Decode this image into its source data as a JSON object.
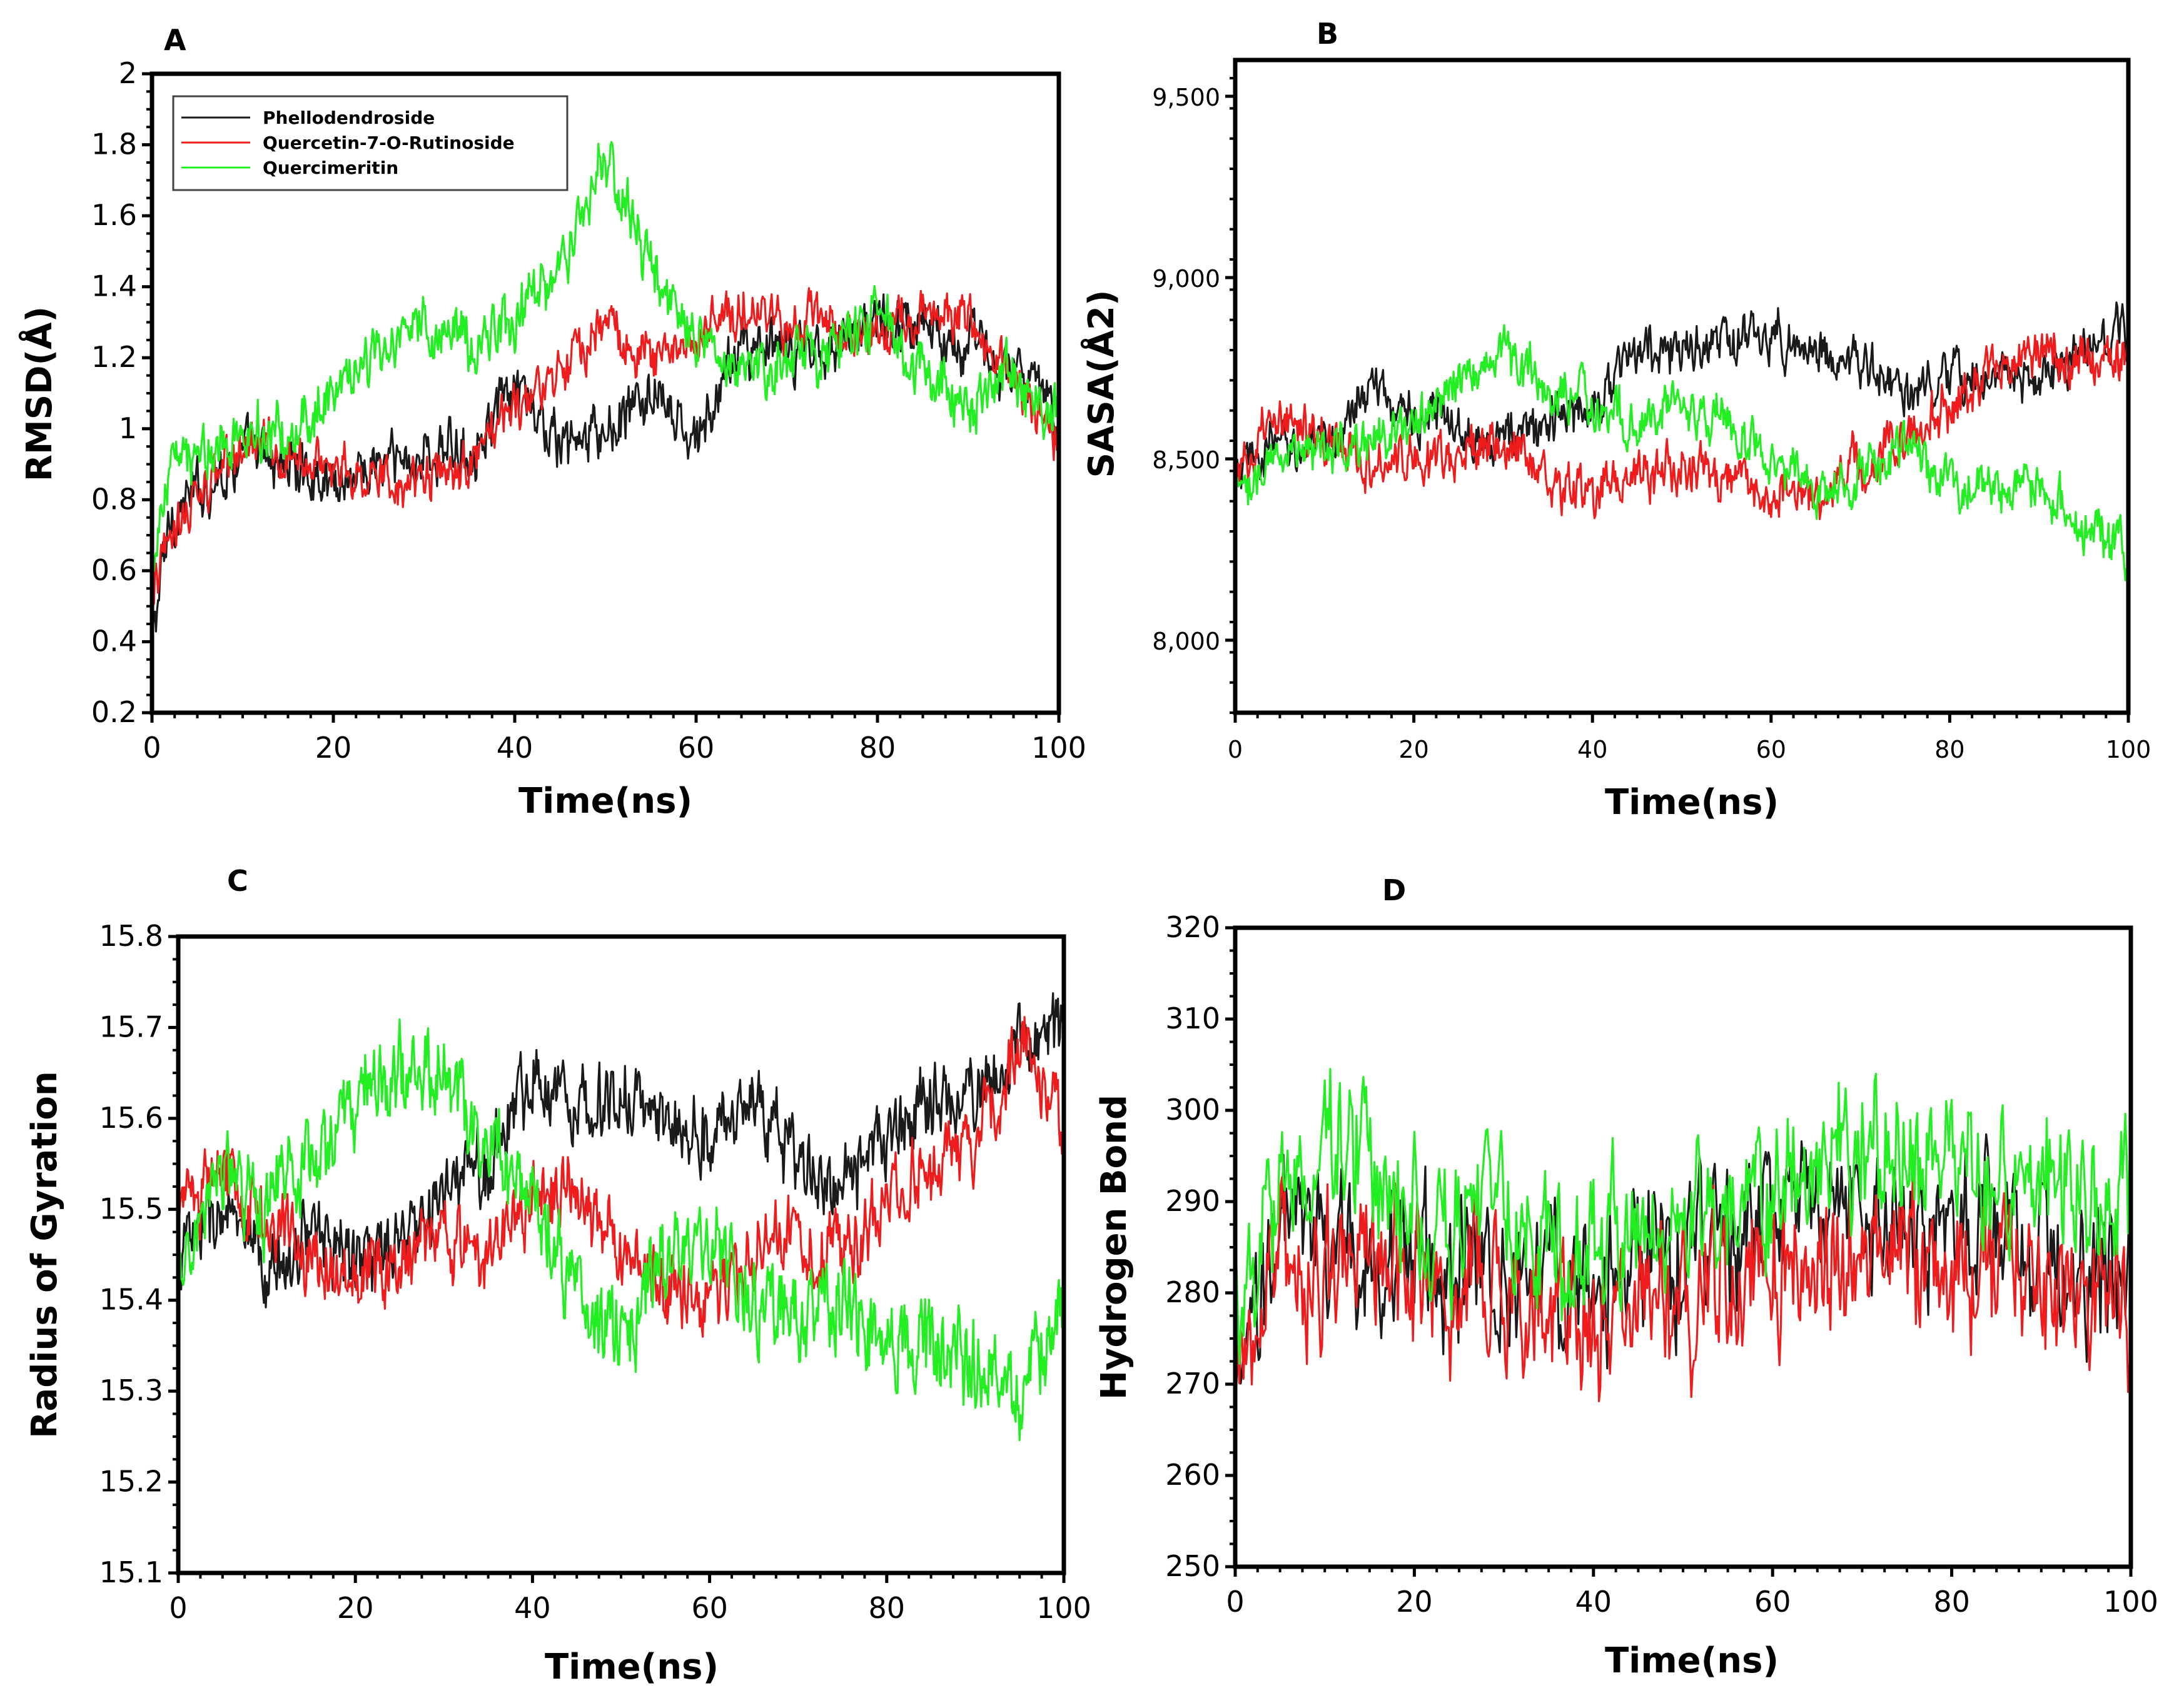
{
  "colors": {
    "Phellodendroside": "#1a1a1a",
    "Quercetin-7-O-Rutinoside": "#ee1c1c",
    "Quercimeritin": "#22ee22"
  },
  "legend": [
    "Phellodendroside",
    "Quercetin-7-O-Rutinoside",
    "Quercimeritin"
  ],
  "chart_data": [
    {
      "id": "A",
      "type": "line",
      "panel_label": "A",
      "xlabel": "Time(ns)",
      "ylabel": "RMSD(Å)",
      "xlim": [
        0,
        100
      ],
      "ylim": [
        0.2,
        2.0
      ],
      "xticks": [
        "0",
        "20",
        "40",
        "60",
        "80",
        "100"
      ],
      "yticks": [
        "0.2",
        "0.4",
        "0.6",
        "0.8",
        "1",
        "1.2",
        "1.4",
        "1.6",
        "1.8",
        "2"
      ],
      "x": [
        0,
        2,
        5,
        10,
        15,
        20,
        25,
        30,
        35,
        40,
        45,
        50,
        55,
        60,
        65,
        70,
        75,
        80,
        85,
        90,
        95,
        100
      ],
      "series": [
        {
          "name": "Phellodendroside",
          "values": [
            0.4,
            0.75,
            0.82,
            0.93,
            0.9,
            0.85,
            0.9,
            0.92,
            0.95,
            1.1,
            0.95,
            0.98,
            1.1,
            0.95,
            1.25,
            1.2,
            1.25,
            1.3,
            1.3,
            1.25,
            1.15,
            1.05
          ],
          "noise": 0.06
        },
        {
          "name": "Quercetin-7-O-Rutinoside",
          "values": [
            0.5,
            0.72,
            0.8,
            0.95,
            0.93,
            0.9,
            0.86,
            0.85,
            0.9,
            1.05,
            1.15,
            1.3,
            1.2,
            1.25,
            1.35,
            1.3,
            1.3,
            1.25,
            1.35,
            1.3,
            1.15,
            0.95
          ],
          "noise": 0.05
        },
        {
          "name": "Quercimeritin",
          "values": [
            0.6,
            0.88,
            0.92,
            0.98,
            1.0,
            1.1,
            1.2,
            1.3,
            1.25,
            1.3,
            1.45,
            1.75,
            1.45,
            1.25,
            1.15,
            1.2,
            1.25,
            1.3,
            1.15,
            1.05,
            1.15,
            1.05
          ],
          "noise": 0.06
        }
      ]
    },
    {
      "id": "B",
      "type": "line",
      "panel_label": "B",
      "xlabel": "Time(ns)",
      "ylabel": "SASA(Å2)",
      "xlim": [
        0,
        100
      ],
      "ylim": [
        7800,
        9600
      ],
      "xticks": [
        "0",
        "20",
        "40",
        "60",
        "80",
        "100"
      ],
      "ytick_values": [
        8000,
        8500,
        9000,
        9500
      ],
      "yticks": [
        "8,000",
        "8,500",
        "9,000",
        "9,500"
      ],
      "x": [
        0,
        5,
        10,
        15,
        20,
        25,
        30,
        35,
        40,
        45,
        50,
        55,
        60,
        65,
        70,
        75,
        80,
        85,
        90,
        95,
        100
      ],
      "series": [
        {
          "name": "Phellodendroside",
          "values": [
            8450,
            8550,
            8520,
            8700,
            8620,
            8600,
            8550,
            8600,
            8650,
            8800,
            8800,
            8820,
            8840,
            8800,
            8760,
            8680,
            8700,
            8750,
            8700,
            8800,
            8850
          ],
          "noise": 50
        },
        {
          "name": "Quercetin-7-O-Rutinoside",
          "values": [
            8450,
            8600,
            8550,
            8500,
            8480,
            8520,
            8550,
            8450,
            8400,
            8450,
            8480,
            8450,
            8420,
            8400,
            8480,
            8550,
            8650,
            8750,
            8800,
            8750,
            8780
          ],
          "noise": 50
        },
        {
          "name": "Quercimeritin",
          "values": [
            8400,
            8500,
            8520,
            8550,
            8600,
            8700,
            8800,
            8700,
            8650,
            8600,
            8650,
            8600,
            8500,
            8400,
            8450,
            8550,
            8450,
            8400,
            8450,
            8300,
            8250
          ],
          "noise": 50
        }
      ]
    },
    {
      "id": "C",
      "type": "line",
      "panel_label": "C",
      "xlabel": "Time(ns)",
      "ylabel": "Radius of Gyration",
      "xlim": [
        0,
        100
      ],
      "ylim": [
        15.1,
        15.8
      ],
      "xticks": [
        "0",
        "20",
        "40",
        "60",
        "80",
        "100"
      ],
      "yticks": [
        "15.1",
        "15.2",
        "15.3",
        "15.4",
        "15.5",
        "15.6",
        "15.7",
        "15.8"
      ],
      "x": [
        0,
        5,
        10,
        15,
        20,
        25,
        30,
        35,
        40,
        45,
        50,
        55,
        60,
        65,
        70,
        75,
        80,
        85,
        90,
        95,
        100
      ],
      "series": [
        {
          "name": "Phellodendroside",
          "values": [
            15.45,
            15.5,
            15.42,
            15.48,
            15.45,
            15.45,
            15.52,
            15.55,
            15.65,
            15.62,
            15.62,
            15.6,
            15.58,
            15.62,
            15.55,
            15.52,
            15.57,
            15.63,
            15.62,
            15.68,
            15.7
          ],
          "noise": 0.03
        },
        {
          "name": "Quercetin-7-O-Rutinoside",
          "values": [
            15.5,
            15.55,
            15.48,
            15.45,
            15.43,
            15.45,
            15.48,
            15.45,
            15.5,
            15.52,
            15.45,
            15.42,
            15.4,
            15.45,
            15.47,
            15.45,
            15.5,
            15.55,
            15.58,
            15.68,
            15.58
          ],
          "noise": 0.03
        },
        {
          "name": "Quercimeritin",
          "values": [
            15.45,
            15.52,
            15.5,
            15.55,
            15.62,
            15.65,
            15.65,
            15.58,
            15.5,
            15.42,
            15.35,
            15.45,
            15.45,
            15.4,
            15.38,
            15.4,
            15.35,
            15.35,
            15.32,
            15.3,
            15.4
          ],
          "noise": 0.035
        }
      ]
    },
    {
      "id": "D",
      "type": "line",
      "panel_label": "D",
      "xlabel": "Time(ns)",
      "ylabel": "Hydrogen Bond",
      "xlim": [
        0,
        100
      ],
      "ylim": [
        250,
        320
      ],
      "xticks": [
        "0",
        "20",
        "40",
        "60",
        "80",
        "100"
      ],
      "yticks": [
        "250",
        "260",
        "270",
        "280",
        "290",
        "300",
        "310",
        "320"
      ],
      "x": [
        0,
        5,
        10,
        15,
        20,
        25,
        30,
        35,
        40,
        45,
        50,
        55,
        60,
        65,
        70,
        75,
        80,
        85,
        90,
        95,
        100
      ],
      "series": [
        {
          "name": "Phellodendroside",
          "values": [
            265,
            288,
            285,
            284,
            285,
            282,
            283,
            282,
            280,
            283,
            285,
            286,
            288,
            289,
            288,
            288,
            287,
            286,
            284,
            282,
            284
          ],
          "noise": 6
        },
        {
          "name": "Quercetin-7-O-Rutinoside",
          "values": [
            270,
            283,
            282,
            283,
            280,
            280,
            279,
            278,
            276,
            279,
            280,
            281,
            282,
            284,
            285,
            283,
            283,
            282,
            281,
            280,
            280
          ],
          "noise": 6
        },
        {
          "name": "Quercimeritin",
          "values": [
            280,
            292,
            294,
            295,
            290,
            287,
            288,
            286,
            286,
            285,
            287,
            290,
            292,
            294,
            295,
            294,
            295,
            293,
            292,
            290,
            288
          ],
          "noise": 6
        }
      ]
    }
  ]
}
